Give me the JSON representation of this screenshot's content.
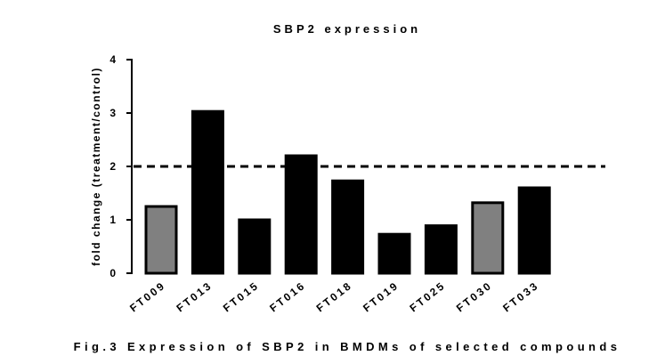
{
  "chart_data": {
    "type": "bar",
    "title": "SBP2 expression",
    "xlabel": "",
    "ylabel": "fold change (treatment/control)",
    "categories": [
      "FT009",
      "FT013",
      "FT015",
      "FT016",
      "FT018",
      "FT019",
      "FT025",
      "FT030",
      "FT033"
    ],
    "values": [
      1.25,
      3.03,
      1.0,
      2.2,
      1.73,
      0.73,
      0.89,
      1.32,
      1.6
    ],
    "bar_colors": [
      "#808080",
      "#000000",
      "#000000",
      "#000000",
      "#000000",
      "#000000",
      "#000000",
      "#808080",
      "#000000"
    ],
    "bar_edge_color": "#000000",
    "ylim": [
      0,
      4
    ],
    "yticks": [
      0,
      1,
      2,
      3,
      4
    ],
    "reference_line": {
      "y": 2.0,
      "style": "dashed",
      "color": "#000000"
    },
    "grid": false,
    "legend": "none"
  },
  "caption": "Fig.3 Expression of SBP2 in BMDMs of selected compounds"
}
